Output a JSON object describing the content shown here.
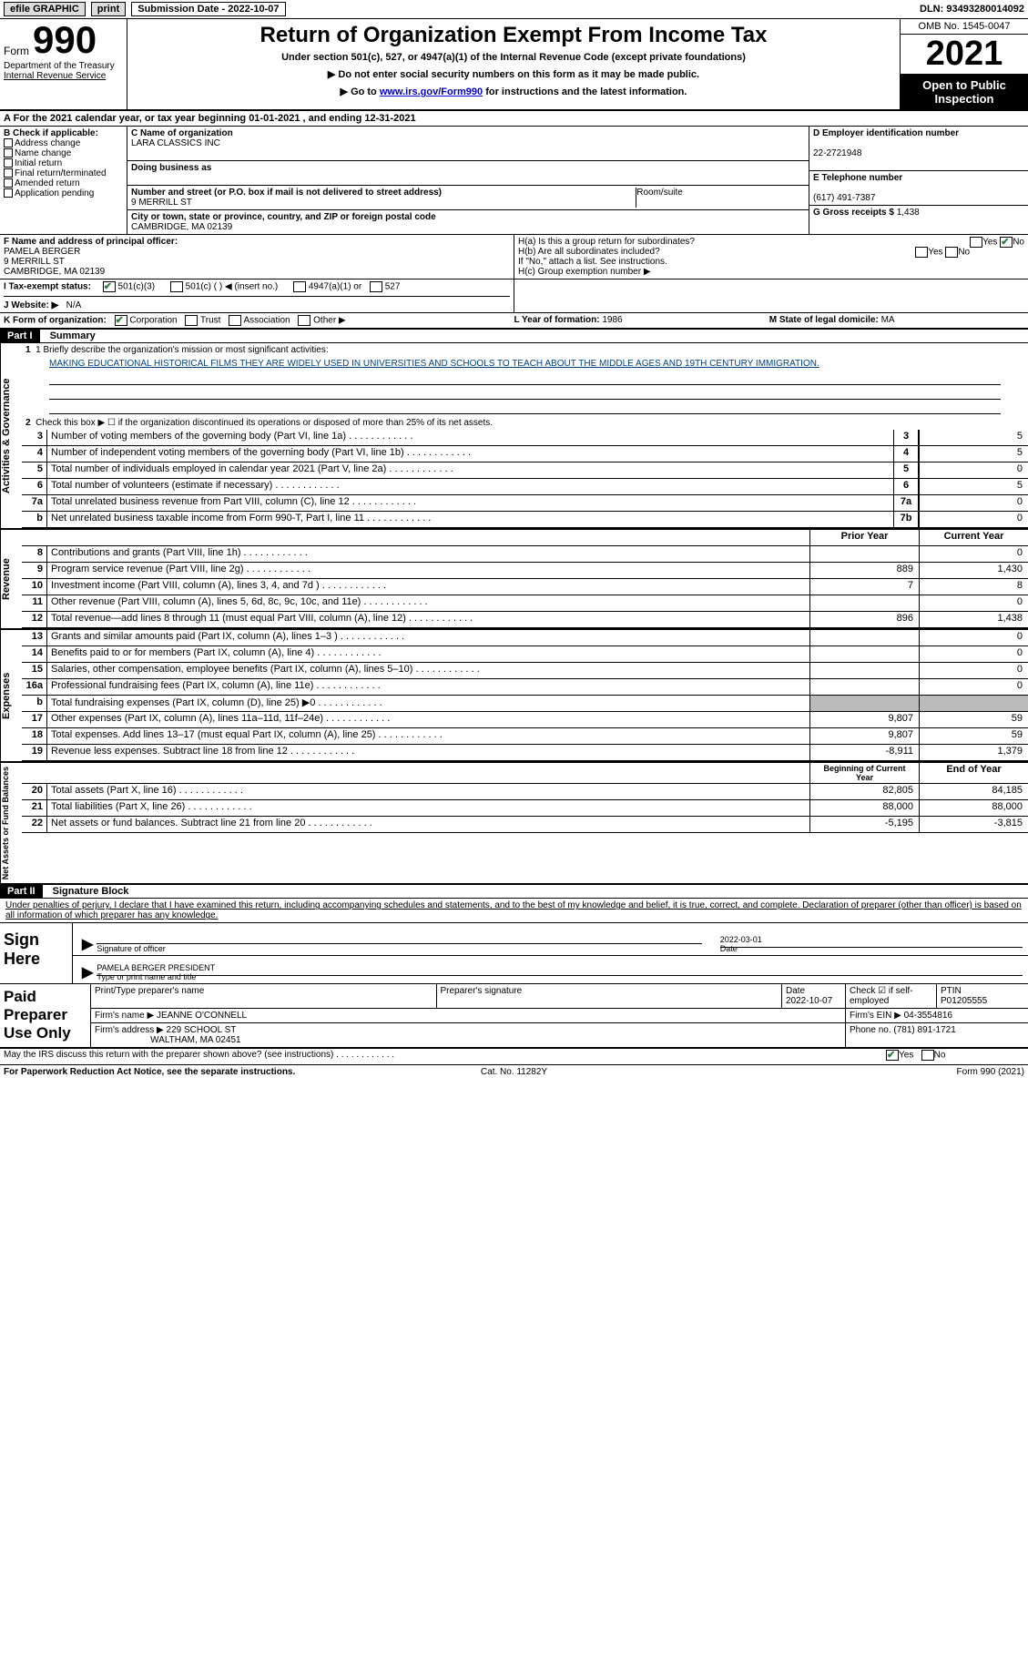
{
  "topbar": {
    "efile": "efile GRAPHIC",
    "print": "print",
    "submission_label": "Submission Date - 2022-10-07",
    "dln": "DLN: 93493280014092"
  },
  "header": {
    "form_word": "Form",
    "form_num": "990",
    "dept": "Department of the Treasury",
    "irs": "Internal Revenue Service",
    "title": "Return of Organization Exempt From Income Tax",
    "subtitle": "Under section 501(c), 527, or 4947(a)(1) of the Internal Revenue Code (except private foundations)",
    "line1": "▶ Do not enter social security numbers on this form as it may be made public.",
    "line2_pre": "▶ Go to ",
    "line2_link": "www.irs.gov/Form990",
    "line2_post": " for instructions and the latest information.",
    "omb": "OMB No. 1545-0047",
    "year": "2021",
    "open": "Open to Public Inspection"
  },
  "periodA": "A For the 2021 calendar year, or tax year beginning 01-01-2021   , and ending 12-31-2021",
  "sectionB": {
    "label": "B Check if applicable:",
    "items": [
      "Address change",
      "Name change",
      "Initial return",
      "Final return/terminated",
      "Amended return",
      "Application pending"
    ]
  },
  "sectionC": {
    "name_label": "C Name of organization",
    "name": "LARA CLASSICS INC",
    "dba_label": "Doing business as",
    "dba": "",
    "street_label": "Number and street (or P.O. box if mail is not delivered to street address)",
    "room_label": "Room/suite",
    "street": "9 MERRILL ST",
    "city_label": "City or town, state or province, country, and ZIP or foreign postal code",
    "city": "CAMBRIDGE, MA  02139"
  },
  "sectionD": {
    "label": "D Employer identification number",
    "ein": "22-2721948"
  },
  "sectionE": {
    "label": "E Telephone number",
    "phone": "(617) 491-7387"
  },
  "sectionG": {
    "label": "G Gross receipts $",
    "amount": "1,438"
  },
  "sectionF": {
    "label": "F Name and address of principal officer:",
    "name": "PAMELA BERGER",
    "street": "9 MERRILL ST",
    "city": "CAMBRIDGE, MA  02139"
  },
  "sectionH": {
    "a": "H(a)  Is this a group return for subordinates?",
    "b": "H(b)  Are all subordinates included?",
    "bnote": "If \"No,\" attach a list. See instructions.",
    "c": "H(c)  Group exemption number ▶"
  },
  "sectionI": {
    "label": "I  Tax-exempt status:",
    "opts": [
      "501(c)(3)",
      "501(c) (  ) ◀ (insert no.)",
      "4947(a)(1) or",
      "527"
    ]
  },
  "sectionJ": {
    "label": "J  Website: ▶",
    "value": "N/A"
  },
  "sectionK": {
    "label": "K Form of organization:",
    "opts": [
      "Corporation",
      "Trust",
      "Association",
      "Other ▶"
    ]
  },
  "sectionL": {
    "label": "L Year of formation:",
    "value": "1986"
  },
  "sectionM": {
    "label": "M State of legal domicile:",
    "value": "MA"
  },
  "part1": {
    "bar": "Part I",
    "title": "Summary",
    "mission_label": "1  Briefly describe the organization's mission or most significant activities:",
    "mission": "MAKING EDUCATIONAL HISTORICAL FILMS THEY ARE WIDELY USED IN UNIVERSITIES AND SCHOOLS TO TEACH ABOUT THE MIDDLE AGES AND 19TH CENTURY IMMIGRATION.",
    "line2": "Check this box ▶ ☐ if the organization discontinued its operations or disposed of more than 25% of its net assets.",
    "rows_ag": [
      {
        "n": "3",
        "d": "Number of voting members of the governing body (Part VI, line 1a)",
        "c": "3",
        "v": "5"
      },
      {
        "n": "4",
        "d": "Number of independent voting members of the governing body (Part VI, line 1b)",
        "c": "4",
        "v": "5"
      },
      {
        "n": "5",
        "d": "Total number of individuals employed in calendar year 2021 (Part V, line 2a)",
        "c": "5",
        "v": "0"
      },
      {
        "n": "6",
        "d": "Total number of volunteers (estimate if necessary)",
        "c": "6",
        "v": "5"
      },
      {
        "n": "7a",
        "d": "Total unrelated business revenue from Part VIII, column (C), line 12",
        "c": "7a",
        "v": "0"
      },
      {
        "n": "b",
        "d": "Net unrelated business taxable income from Form 990-T, Part I, line 11",
        "c": "7b",
        "v": "0"
      }
    ],
    "prior_label": "Prior Year",
    "current_label": "Current Year",
    "rows_rev": [
      {
        "n": "8",
        "d": "Contributions and grants (Part VIII, line 1h)",
        "p": "",
        "c": "0"
      },
      {
        "n": "9",
        "d": "Program service revenue (Part VIII, line 2g)",
        "p": "889",
        "c": "1,430"
      },
      {
        "n": "10",
        "d": "Investment income (Part VIII, column (A), lines 3, 4, and 7d )",
        "p": "7",
        "c": "8"
      },
      {
        "n": "11",
        "d": "Other revenue (Part VIII, column (A), lines 5, 6d, 8c, 9c, 10c, and 11e)",
        "p": "",
        "c": "0"
      },
      {
        "n": "12",
        "d": "Total revenue—add lines 8 through 11 (must equal Part VIII, column (A), line 12)",
        "p": "896",
        "c": "1,438"
      }
    ],
    "rows_exp": [
      {
        "n": "13",
        "d": "Grants and similar amounts paid (Part IX, column (A), lines 1–3 )",
        "p": "",
        "c": "0"
      },
      {
        "n": "14",
        "d": "Benefits paid to or for members (Part IX, column (A), line 4)",
        "p": "",
        "c": "0"
      },
      {
        "n": "15",
        "d": "Salaries, other compensation, employee benefits (Part IX, column (A), lines 5–10)",
        "p": "",
        "c": "0"
      },
      {
        "n": "16a",
        "d": "Professional fundraising fees (Part IX, column (A), line 11e)",
        "p": "",
        "c": "0"
      },
      {
        "n": "b",
        "d": "Total fundraising expenses (Part IX, column (D), line 25) ▶0",
        "p": "GREY",
        "c": "GREY"
      },
      {
        "n": "17",
        "d": "Other expenses (Part IX, column (A), lines 11a–11d, 11f–24e)",
        "p": "9,807",
        "c": "59"
      },
      {
        "n": "18",
        "d": "Total expenses. Add lines 13–17 (must equal Part IX, column (A), line 25)",
        "p": "9,807",
        "c": "59"
      },
      {
        "n": "19",
        "d": "Revenue less expenses. Subtract line 18 from line 12",
        "p": "-8,911",
        "c": "1,379"
      }
    ],
    "begin_label": "Beginning of Current Year",
    "end_label": "End of Year",
    "rows_net": [
      {
        "n": "20",
        "d": "Total assets (Part X, line 16)",
        "p": "82,805",
        "c": "84,185"
      },
      {
        "n": "21",
        "d": "Total liabilities (Part X, line 26)",
        "p": "88,000",
        "c": "88,000"
      },
      {
        "n": "22",
        "d": "Net assets or fund balances. Subtract line 21 from line 20",
        "p": "-5,195",
        "c": "-3,815"
      }
    ]
  },
  "sidelabels": {
    "ag": "Activities & Governance",
    "rev": "Revenue",
    "exp": "Expenses",
    "net": "Net Assets or Fund Balances"
  },
  "part2": {
    "bar": "Part II",
    "title": "Signature Block",
    "decl": "Under penalties of perjury, I declare that I have examined this return, including accompanying schedules and statements, and to the best of my knowledge and belief, it is true, correct, and complete. Declaration of preparer (other than officer) is based on all information of which preparer has any knowledge."
  },
  "sign": {
    "left": "Sign Here",
    "sig_label": "Signature of officer",
    "date": "2022-03-01",
    "name": "PAMELA BERGER  PRESIDENT",
    "name_label": "Type or print name and title"
  },
  "prep": {
    "left": "Paid Preparer Use Only",
    "h1": "Print/Type preparer's name",
    "h2": "Preparer's signature",
    "h3": "Date",
    "h3v": "2022-10-07",
    "h4": "Check ☑ if self-employed",
    "h5": "PTIN",
    "h5v": "P01205555",
    "firm_label": "Firm's name   ▶",
    "firm": "JEANNE O'CONNELL",
    "ein_label": "Firm's EIN ▶",
    "ein": "04-3554816",
    "addr_label": "Firm's address ▶",
    "addr1": "229 SCHOOL ST",
    "addr2": "WALTHAM, MA  02451",
    "phone_label": "Phone no.",
    "phone": "(781) 891-1721"
  },
  "discuss": "May the IRS discuss this return with the preparer shown above? (see instructions)",
  "footer": {
    "pra": "For Paperwork Reduction Act Notice, see the separate instructions.",
    "cat": "Cat. No. 11282Y",
    "form": "Form 990 (2021)"
  },
  "colors": {
    "link": "#0000cc",
    "check": "#2a7a3f",
    "grey": "#bbbbbb",
    "black": "#000000"
  }
}
